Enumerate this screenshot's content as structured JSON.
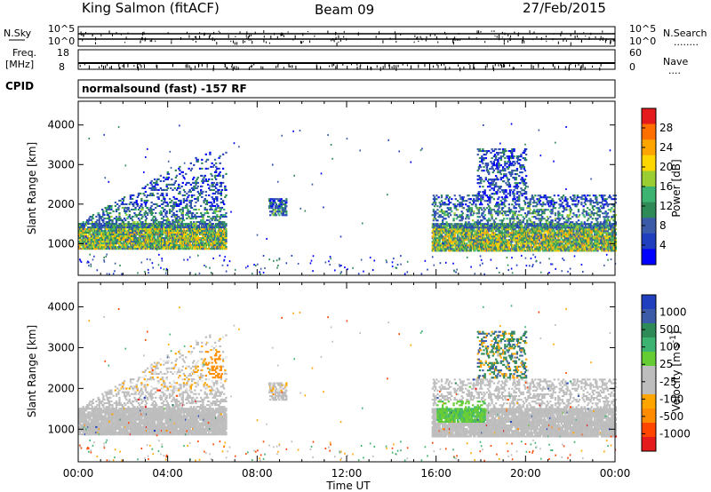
{
  "header": {
    "station": "King Salmon (fitACF)",
    "beam": "Beam 09",
    "date": "27/Feb/2015"
  },
  "strips": {
    "nsky_label": "N.Sky",
    "nsearch_label": "N.Search",
    "nsearch_dots": "........",
    "nsky_ticks": [
      "10^5",
      "10^0"
    ],
    "nsearch_ticks": [
      "10^5",
      "10^0"
    ],
    "freq_label_1": "Freq.",
    "freq_label_2": "[MHz]",
    "freq_ticks": [
      "18",
      "8"
    ],
    "nave_label": "Nave",
    "nave_dots": "....",
    "nave_ticks": [
      "60",
      "0"
    ],
    "cpid_label": "CPID",
    "cpid_text": "normalsound (fast) -157 RF"
  },
  "chart_data": [
    {
      "type": "heatmap",
      "name": "power-panel",
      "ylabel": "Slant Range [km]",
      "xlabel": "Time UT",
      "x_range": [
        0,
        24
      ],
      "ylim": [
        200,
        4600
      ],
      "yticks": [
        1000,
        2000,
        3000,
        4000
      ],
      "xticks": [
        "00:00",
        "04:00",
        "08:00",
        "12:00",
        "16:00",
        "20:00",
        "00:00"
      ],
      "colorbar": {
        "label": "Power [dB]",
        "ticks": [
          "28",
          "24",
          "20",
          "16",
          "12",
          "8",
          "4"
        ],
        "colors": [
          "#e41a1c",
          "#ff6f00",
          "#ffa500",
          "#ffd700",
          "#9acd32",
          "#3cb371",
          "#2e8b57",
          "#3b5ba9",
          "#1f3fbf",
          "#0000ff"
        ]
      },
      "regions": [
        {
          "t0": 0.0,
          "t1": 6.6,
          "r0": 900,
          "r1": 3300,
          "desc": "echo band"
        },
        {
          "t0": 8.5,
          "t1": 9.3,
          "r0": 1700,
          "r1": 2100,
          "desc": "patch"
        },
        {
          "t0": 15.8,
          "t1": 24.0,
          "r0": 800,
          "r1": 3500,
          "desc": "echo band"
        }
      ]
    },
    {
      "type": "heatmap",
      "name": "velocity-panel",
      "ylabel": "Slant Range [km]",
      "xlabel": "Time UT",
      "x_range": [
        0,
        24
      ],
      "ylim": [
        200,
        4600
      ],
      "yticks": [
        1000,
        2000,
        3000,
        4000
      ],
      "xticks": [
        "00:00",
        "04:00",
        "08:00",
        "12:00",
        "16:00",
        "20:00",
        "00:00"
      ],
      "colorbar": {
        "label": "Velocity [m s^-1]",
        "ticks": [
          "1000",
          "500",
          "100",
          "25",
          "-25",
          "-100",
          "-500",
          "-1000"
        ],
        "colors": [
          "#1f3fbf",
          "#3b5ba9",
          "#2e8b57",
          "#3cb371",
          "#66cc33",
          "#bdbdbd",
          "#bdbdbd",
          "#ffa500",
          "#ff8c00",
          "#ff4500",
          "#e41a1c"
        ]
      }
    }
  ]
}
